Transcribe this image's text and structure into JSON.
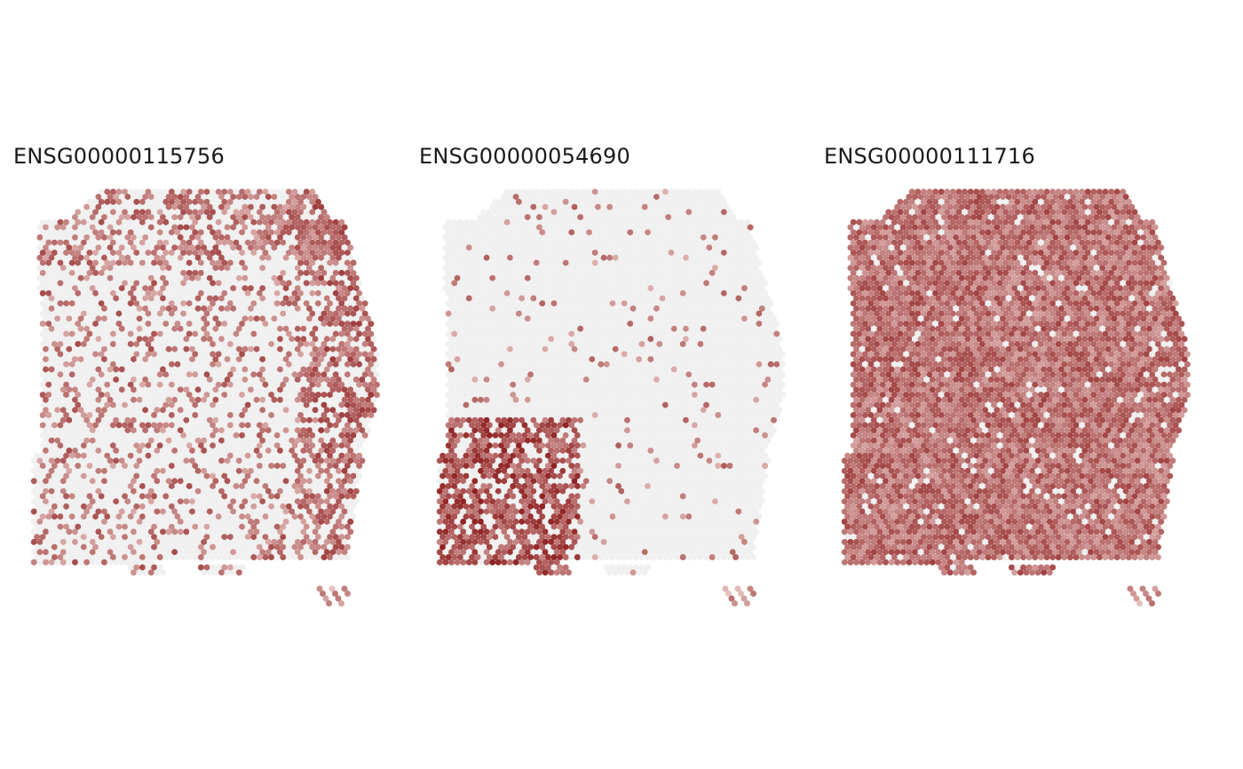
{
  "figure": {
    "panels": [
      {
        "title": "ENSG00000115756"
      },
      {
        "title": "ENSG00000054690"
      },
      {
        "title": "ENSG00000111716"
      }
    ]
  },
  "chart_data": [
    {
      "type": "heatmap",
      "title": "ENSG00000115756",
      "xlabel": "",
      "ylabel": "",
      "grid": false,
      "legend": "none",
      "colors": {
        "low": "#f0f0f0",
        "high": "#8b1a1a"
      },
      "pattern": "sparse expression across tissue; strongest along right edge band and upper-right region"
    },
    {
      "type": "heatmap",
      "title": "ENSG00000054690",
      "xlabel": "",
      "ylabel": "",
      "grid": false,
      "legend": "none",
      "colors": {
        "low": "#f0f0f0",
        "high": "#8b1a1a"
      },
      "pattern": "mostly no expression; dense high expression cluster in lower-left region"
    },
    {
      "type": "heatmap",
      "title": "ENSG00000111716",
      "xlabel": "",
      "ylabel": "",
      "grid": false,
      "legend": "none",
      "colors": {
        "low": "#f0f0f0",
        "high": "#8b1a1a"
      },
      "pattern": "broad moderate expression across whole tissue"
    }
  ]
}
